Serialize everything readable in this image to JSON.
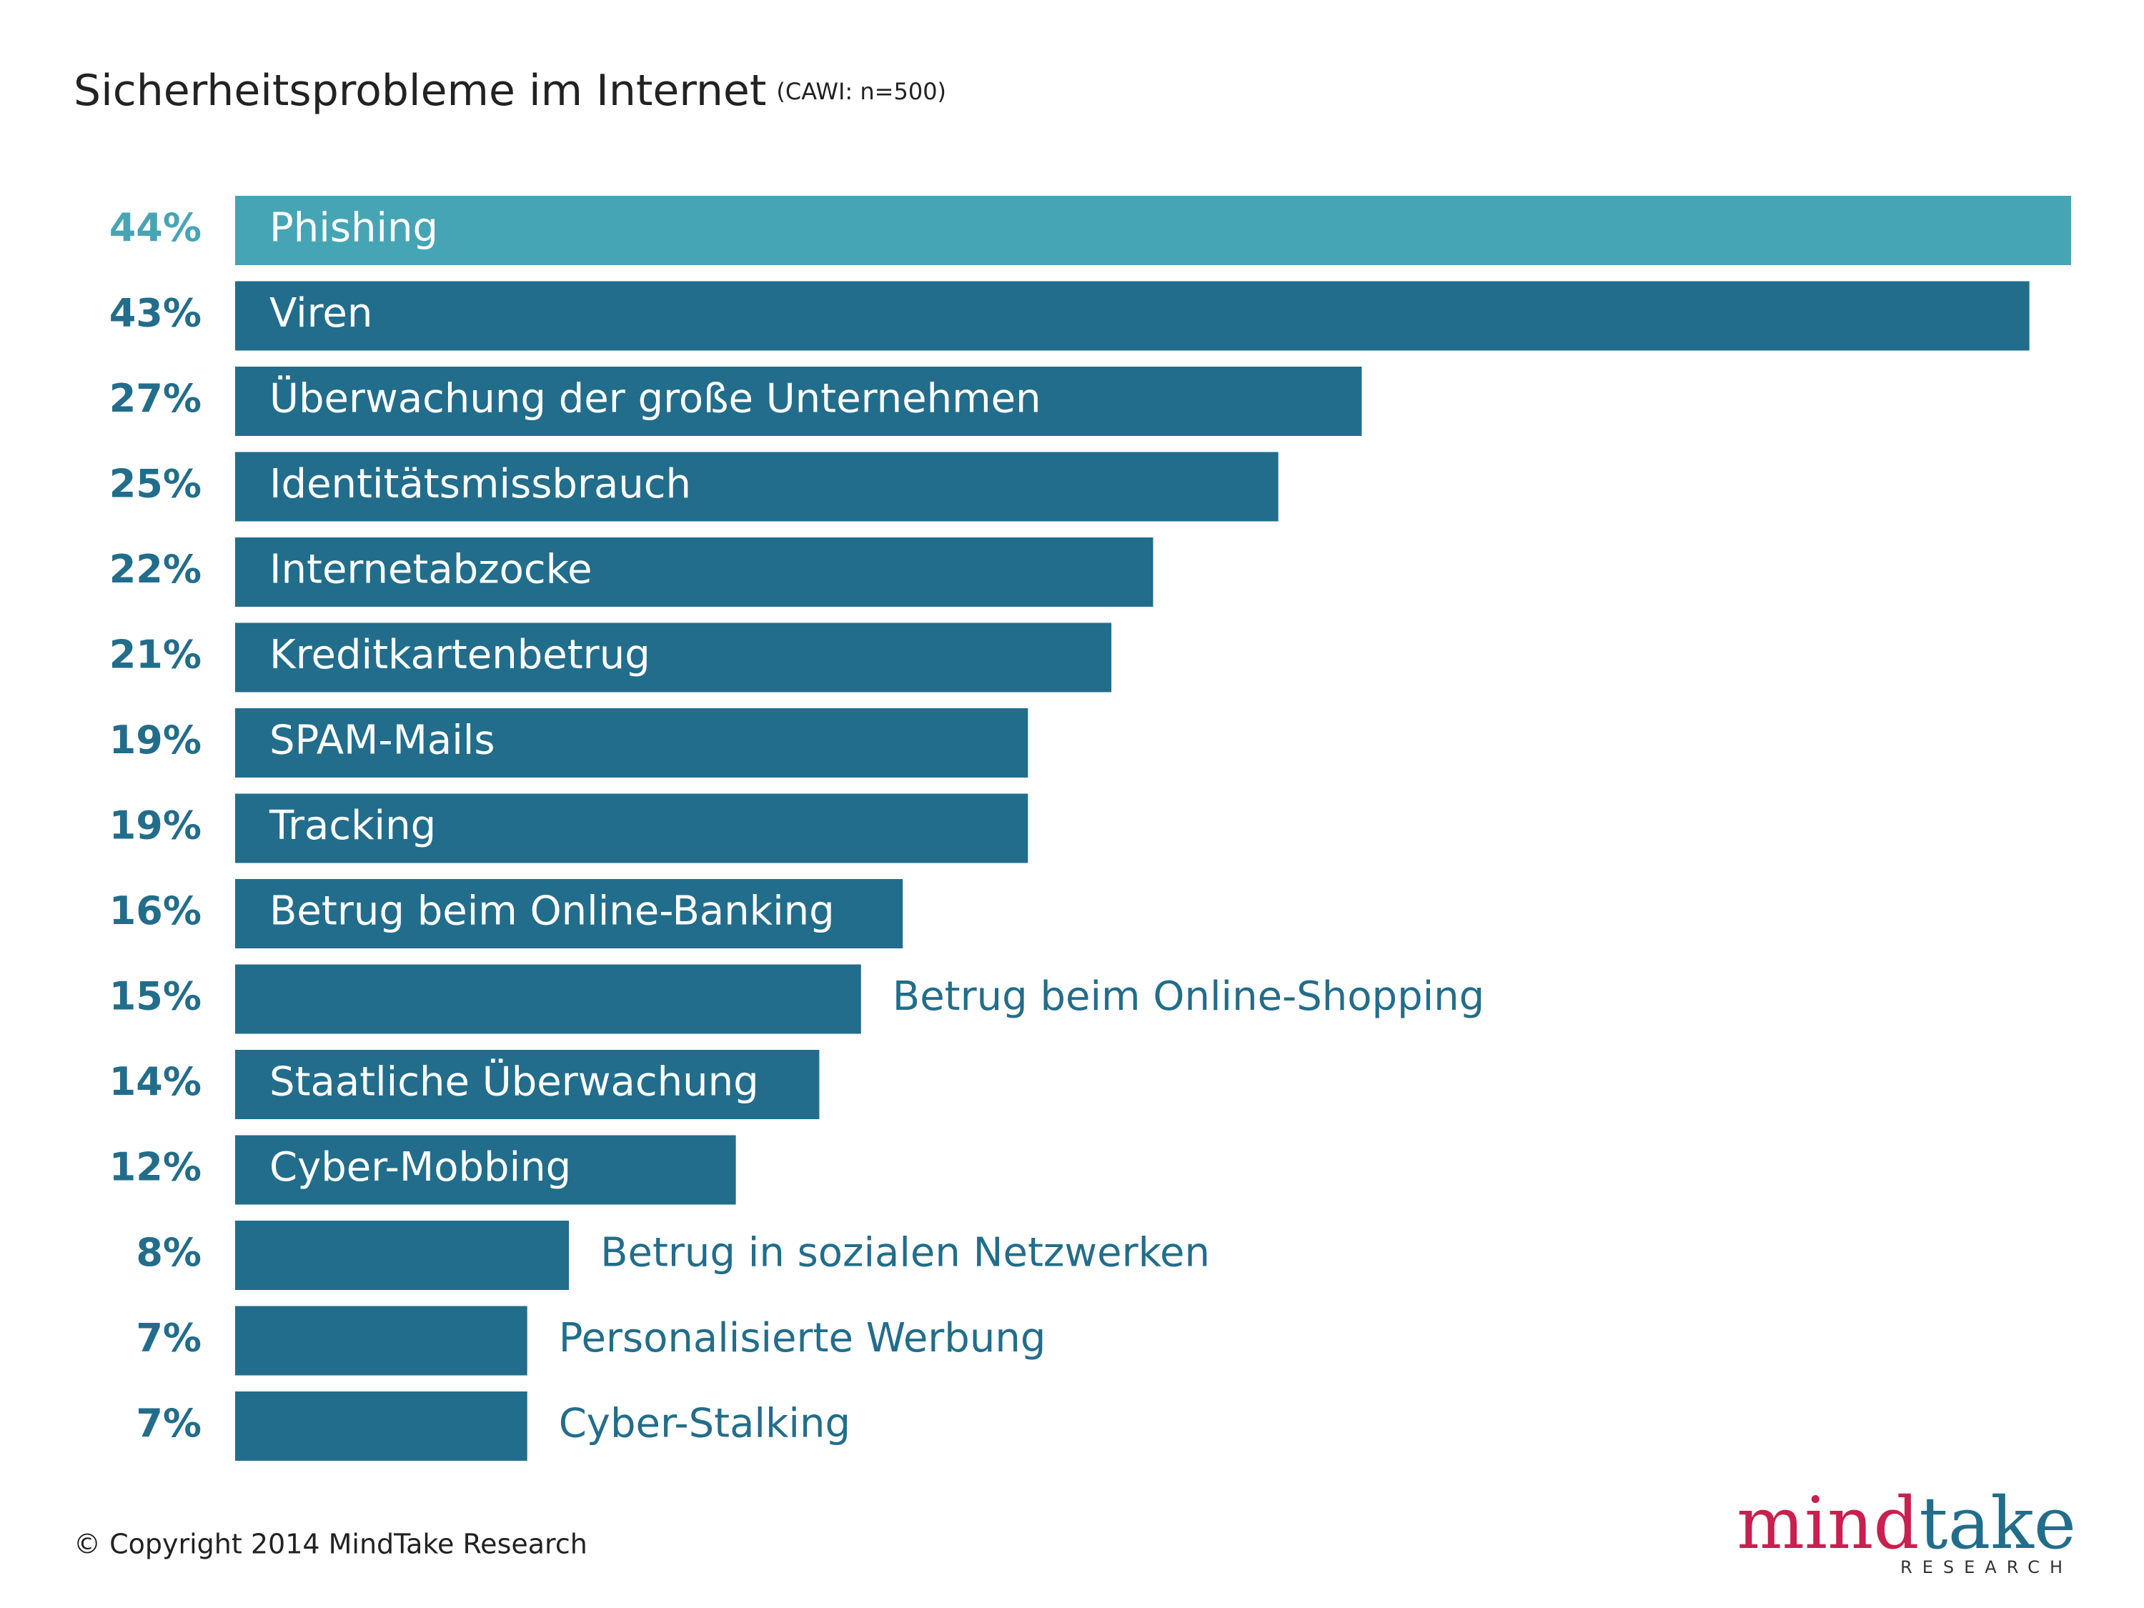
{
  "chart_data": {
    "type": "bar",
    "orientation": "horizontal",
    "title": "Sicherheitsprobleme im Internet",
    "subtitle": "(CAWI: n=500)",
    "categories": [
      "Phishing",
      "Viren",
      "Überwachung der große Unternehmen",
      "Identitätsmissbrauch",
      "Internetabzocke",
      "Kreditkartenbetrug",
      "SPAM-Mails",
      "Tracking",
      "Betrug beim Online-Banking",
      "Betrug beim Online-Shopping",
      "Staatliche Überwachung",
      "Cyber-Mobbing",
      "Betrug in sozialen Netzwerken",
      "Personalisierte Werbung",
      "Cyber-Stalking"
    ],
    "values": [
      44,
      43,
      27,
      25,
      22,
      21,
      19,
      19,
      16,
      15,
      14,
      12,
      8,
      7,
      7
    ],
    "value_labels": [
      "44%",
      "43%",
      "27%",
      "25%",
      "22%",
      "21%",
      "19%",
      "19%",
      "16%",
      "15%",
      "14%",
      "12%",
      "8%",
      "7%",
      "7%"
    ],
    "colors": [
      "#46a5b5",
      "#226d8b",
      "#226d8b",
      "#226d8b",
      "#226d8b",
      "#226d8b",
      "#226d8b",
      "#226d8b",
      "#226d8b",
      "#226d8b",
      "#226d8b",
      "#226d8b",
      "#226d8b",
      "#226d8b",
      "#226d8b"
    ]
  },
  "footer": {
    "copyright": "© Copyright 2014 MindTake Research",
    "logo_mind": "mind",
    "logo_take": "take",
    "logo_sub": "RESEARCH"
  }
}
